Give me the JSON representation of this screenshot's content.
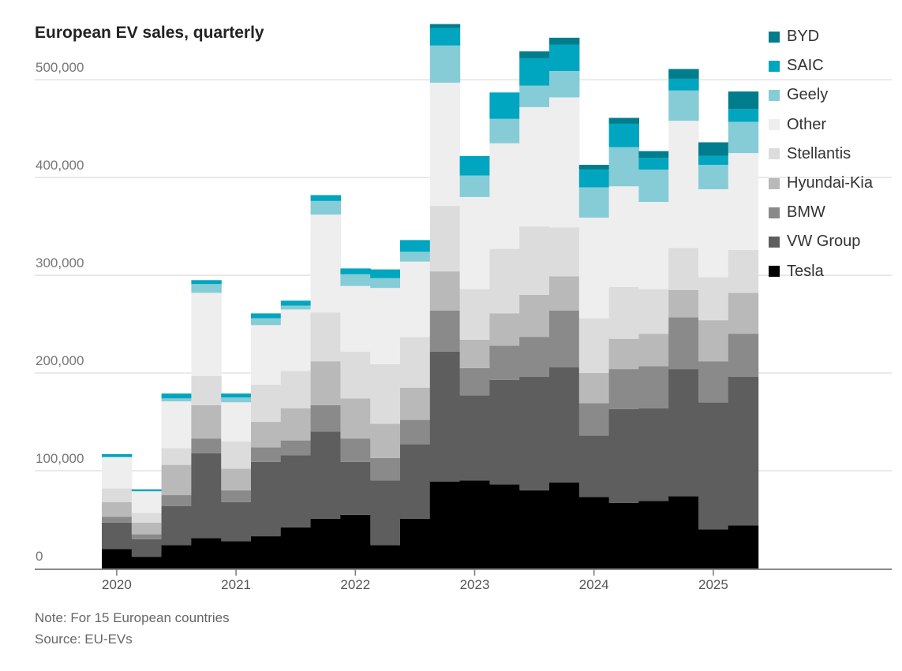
{
  "chart_data": {
    "type": "bar",
    "stacked": true,
    "title": "European EV sales, quarterly",
    "xlabel": "",
    "ylabel": "",
    "ylim": [
      0,
      550000
    ],
    "yticks": [
      {
        "value": 0,
        "label": "0"
      },
      {
        "value": 100000,
        "label": "100,000"
      },
      {
        "value": 200000,
        "label": "200,000"
      },
      {
        "value": 300000,
        "label": "300,000"
      },
      {
        "value": 400000,
        "label": "400,000"
      },
      {
        "value": 500000,
        "label": "500,000"
      }
    ],
    "categories": [
      "2020 Q1",
      "2020 Q2",
      "2020 Q3",
      "2020 Q4",
      "2021 Q1",
      "2021 Q2",
      "2021 Q3",
      "2021 Q4",
      "2022 Q1",
      "2022 Q2",
      "2022 Q3",
      "2022 Q4",
      "2023 Q1",
      "2023 Q2",
      "2023 Q3",
      "2023 Q4",
      "2024 Q1",
      "2024 Q2",
      "2024 Q3",
      "2024 Q4",
      "2025 Q1",
      "2025 Q2"
    ],
    "xtick_labels": [
      {
        "category_index": 0,
        "label": "2020"
      },
      {
        "category_index": 4,
        "label": "2021"
      },
      {
        "category_index": 8,
        "label": "2022"
      },
      {
        "category_index": 12,
        "label": "2023"
      },
      {
        "category_index": 16,
        "label": "2024"
      },
      {
        "category_index": 20,
        "label": "2025"
      }
    ],
    "grid": true,
    "legend_position": "right",
    "series": [
      {
        "name": "Tesla",
        "color": "#000000",
        "values": [
          20000,
          12000,
          24000,
          31000,
          28000,
          33000,
          42000,
          51000,
          55000,
          24000,
          51000,
          89000,
          90000,
          86000,
          80000,
          88000,
          73000,
          67000,
          69000,
          74000,
          40000,
          44000
        ]
      },
      {
        "name": "VW Group",
        "color": "#5e5e5e",
        "values": [
          27000,
          18000,
          40000,
          87000,
          40000,
          76000,
          74000,
          89000,
          54000,
          66000,
          76000,
          133000,
          87000,
          107000,
          116000,
          118000,
          63000,
          96000,
          95000,
          130000,
          130000,
          152000
        ]
      },
      {
        "name": "BMW",
        "color": "#8a8a8a",
        "values": [
          6000,
          5000,
          11000,
          15000,
          12000,
          15000,
          15000,
          27000,
          24000,
          23000,
          25000,
          42000,
          28000,
          35000,
          41000,
          58000,
          33000,
          41000,
          43000,
          53000,
          42000,
          44000
        ]
      },
      {
        "name": "Hyundai-Kia",
        "color": "#b9b9b9",
        "values": [
          15000,
          12000,
          31000,
          34000,
          22000,
          26000,
          33000,
          45000,
          41000,
          35000,
          33000,
          40000,
          29000,
          33000,
          43000,
          35000,
          31000,
          31000,
          33000,
          28000,
          42000,
          42000
        ]
      },
      {
        "name": "Stellantis",
        "color": "#dcdcdc",
        "values": [
          14000,
          10000,
          17000,
          30000,
          28000,
          38000,
          38000,
          50000,
          48000,
          61000,
          52000,
          67000,
          52000,
          66000,
          70000,
          50000,
          56000,
          53000,
          46000,
          43000,
          44000,
          44000
        ]
      },
      {
        "name": "Other",
        "color": "#eeeeee",
        "values": [
          32000,
          22000,
          48000,
          85000,
          40000,
          61000,
          63000,
          100000,
          67000,
          78000,
          77000,
          126000,
          94000,
          108000,
          122000,
          133000,
          103000,
          103000,
          89000,
          130000,
          90000,
          99000
        ]
      },
      {
        "name": "Geely",
        "color": "#85ccd7",
        "values": [
          0,
          0,
          3000,
          9000,
          5000,
          7000,
          4000,
          14000,
          12000,
          10000,
          10000,
          38000,
          22000,
          25000,
          22000,
          27000,
          31000,
          40000,
          33000,
          31000,
          25000,
          32000
        ]
      },
      {
        "name": "SAIC",
        "color": "#00a5bf",
        "values": [
          3000,
          2000,
          5000,
          4000,
          4000,
          5000,
          5000,
          6000,
          6000,
          9000,
          12000,
          18000,
          20000,
          27000,
          28000,
          27000,
          18000,
          24000,
          12000,
          12000,
          9000,
          13000
        ]
      },
      {
        "name": "BYD",
        "color": "#007d8c",
        "values": [
          0,
          0,
          0,
          0,
          0,
          0,
          0,
          0,
          0,
          0,
          0,
          4000,
          0,
          0,
          7000,
          7000,
          5000,
          6000,
          7000,
          10000,
          14000,
          18000
        ]
      }
    ]
  },
  "footer": {
    "note": "Note: For 15 European countries",
    "source": "Source: EU-EVs"
  }
}
